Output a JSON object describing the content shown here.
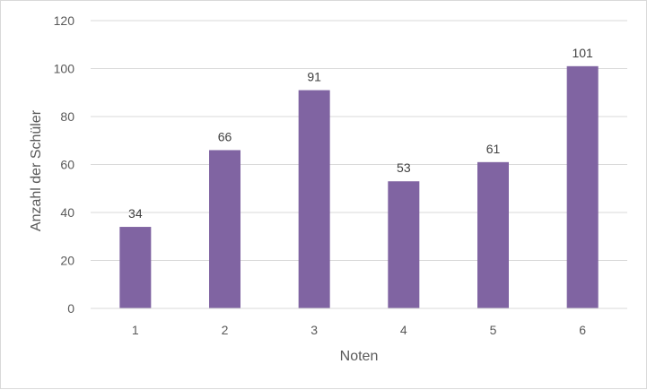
{
  "chart_data": {
    "type": "bar",
    "categories": [
      "1",
      "2",
      "3",
      "4",
      "5",
      "6"
    ],
    "values": [
      34,
      66,
      91,
      53,
      61,
      101
    ],
    "xlabel": "Noten",
    "ylabel": "Anzahl der Schüler",
    "ylim": [
      0,
      120
    ],
    "yticks": [
      0,
      20,
      40,
      60,
      80,
      100,
      120
    ],
    "grid": true,
    "data_labels": true,
    "bar_color": "#8064a2"
  }
}
